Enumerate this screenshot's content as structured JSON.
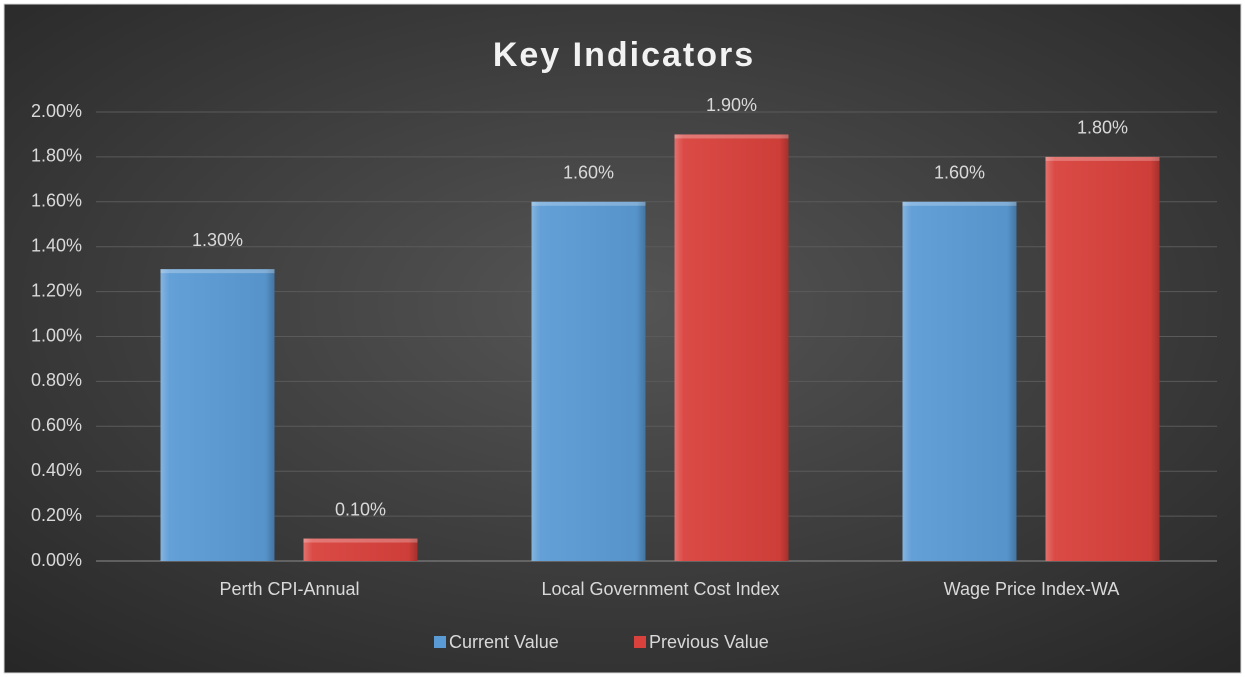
{
  "chart_data": {
    "type": "bar",
    "title": "Key Indicators",
    "categories": [
      "Perth CPI-Annual",
      "Local Government Cost Index",
      "Wage Price Index-WA"
    ],
    "series": [
      {
        "name": "Current Value",
        "color": "#5b9bd5",
        "values": [
          1.3,
          1.6,
          1.6
        ],
        "value_labels": [
          "1.30%",
          "1.60%",
          "1.60%"
        ]
      },
      {
        "name": "Previous Value",
        "color": "#d9413c",
        "values": [
          0.1,
          1.9,
          1.8
        ],
        "value_labels": [
          "0.10%",
          "1.90%",
          "1.80%"
        ]
      }
    ],
    "ylim": [
      0,
      2
    ],
    "yticks": [
      {
        "value": 0,
        "label": "0.00%"
      },
      {
        "value": 0.2,
        "label": "0.20%"
      },
      {
        "value": 0.4,
        "label": "0.40%"
      },
      {
        "value": 0.6,
        "label": "0.60%"
      },
      {
        "value": 0.8,
        "label": "0.80%"
      },
      {
        "value": 1.0,
        "label": "1.00%"
      },
      {
        "value": 1.2,
        "label": "1.20%"
      },
      {
        "value": 1.4,
        "label": "1.40%"
      },
      {
        "value": 1.6,
        "label": "1.60%"
      },
      {
        "value": 1.8,
        "label": "1.80%"
      },
      {
        "value": 2.0,
        "label": "2.00%"
      }
    ],
    "grid": true,
    "legend": "bottom"
  }
}
